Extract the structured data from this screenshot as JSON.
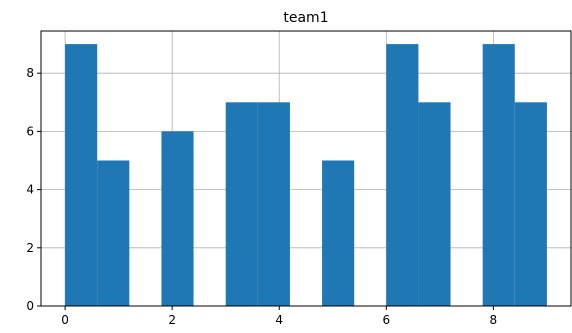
{
  "chart_data": {
    "type": "bar",
    "title": "team1",
    "xlabel": "",
    "ylabel": "",
    "xlim": [
      -0.45,
      9.45
    ],
    "ylim": [
      0,
      9.45
    ],
    "grid": true,
    "bar_color": "#1f77b4",
    "bins": [
      {
        "x0": 0.0,
        "x1": 0.6,
        "value": 9
      },
      {
        "x0": 0.6,
        "x1": 1.2,
        "value": 5
      },
      {
        "x0": 1.2,
        "x1": 1.8,
        "value": 0
      },
      {
        "x0": 1.8,
        "x1": 2.4,
        "value": 6
      },
      {
        "x0": 2.4,
        "x1": 3.0,
        "value": 0
      },
      {
        "x0": 3.0,
        "x1": 3.6,
        "value": 7
      },
      {
        "x0": 3.6,
        "x1": 4.2,
        "value": 7
      },
      {
        "x0": 4.2,
        "x1": 4.8,
        "value": 0
      },
      {
        "x0": 4.8,
        "x1": 5.4,
        "value": 5
      },
      {
        "x0": 5.4,
        "x1": 6.0,
        "value": 0
      },
      {
        "x0": 6.0,
        "x1": 6.6,
        "value": 9
      },
      {
        "x0": 6.6,
        "x1": 7.2,
        "value": 7
      },
      {
        "x0": 7.2,
        "x1": 7.8,
        "value": 0
      },
      {
        "x0": 7.8,
        "x1": 8.4,
        "value": 9
      },
      {
        "x0": 8.4,
        "x1": 9.0,
        "value": 7
      }
    ],
    "xticks": [
      "0",
      "2",
      "4",
      "6",
      "8"
    ],
    "yticks": [
      "0",
      "2",
      "4",
      "6",
      "8"
    ]
  }
}
